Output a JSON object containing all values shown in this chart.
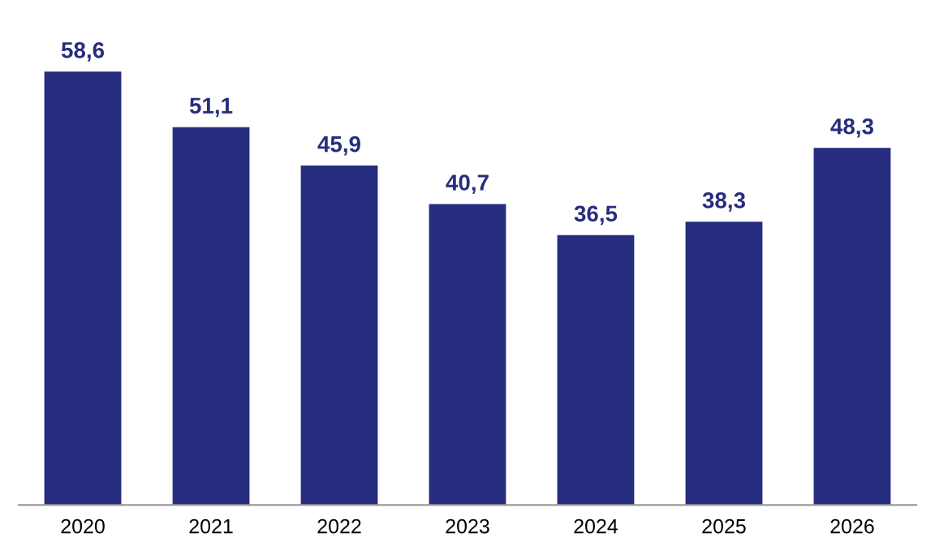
{
  "chart_data": {
    "type": "bar",
    "categories": [
      "2020",
      "2021",
      "2022",
      "2023",
      "2024",
      "2025",
      "2026"
    ],
    "values": [
      58.6,
      51.1,
      45.9,
      40.7,
      36.5,
      38.3,
      48.3
    ],
    "value_labels": [
      "58,6",
      "51,1",
      "45,9",
      "40,7",
      "36,5",
      "38,3",
      "48,3"
    ],
    "color": "#262d7e",
    "tick_labels": "x"
  }
}
